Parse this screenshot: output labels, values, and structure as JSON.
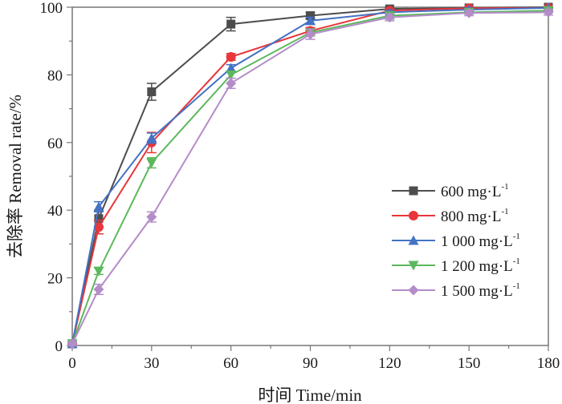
{
  "chart_data": {
    "type": "line",
    "title": "",
    "xlabel": "时间 Time/min",
    "ylabel": "去除率 Removal rate/%",
    "xlim": [
      0,
      180
    ],
    "ylim": [
      0,
      100
    ],
    "x_ticks": [
      0,
      30,
      60,
      90,
      120,
      150,
      180
    ],
    "x_minor_step": 15,
    "y_ticks": [
      0,
      20,
      40,
      60,
      80,
      100
    ],
    "y_minor_step": 10,
    "grid": false,
    "legend_position": "center-right",
    "x": [
      0,
      10,
      30,
      60,
      90,
      120,
      150,
      180
    ],
    "series": [
      {
        "name": "600 mg·L",
        "name_sup": "-1",
        "color": "#4d4d4d",
        "marker": "square",
        "values": [
          0.5,
          37.5,
          75,
          95,
          97.5,
          99.5,
          99.8,
          100
        ],
        "errors": [
          0.5,
          2.5,
          2.5,
          2,
          1,
          0.5,
          0.3,
          0.2
        ]
      },
      {
        "name": "800 mg·L",
        "name_sup": "-1",
        "color": "#e8363a",
        "marker": "circle",
        "values": [
          0.5,
          35,
          60,
          85.3,
          93,
          99,
          99.7,
          99.8
        ],
        "errors": [
          0.5,
          2,
          3,
          1,
          1,
          0.5,
          0.3,
          0.2
        ]
      },
      {
        "name": "1 000 mg·L",
        "name_sup": "-1",
        "color": "#4472c4",
        "marker": "triangle-up",
        "values": [
          0.5,
          41,
          61.3,
          82,
          96,
          98.5,
          99.3,
          99.8
        ],
        "errors": [
          0.5,
          1.5,
          1.5,
          1,
          1,
          0.5,
          0.5,
          0.3
        ]
      },
      {
        "name": "1 200 mg·L",
        "name_sup": "-1",
        "color": "#5cb85c",
        "marker": "triangle-down",
        "values": [
          0.5,
          22,
          54,
          80,
          92.5,
          97.5,
          98.5,
          99
        ],
        "errors": [
          0.5,
          1,
          1.5,
          1,
          1,
          1,
          0.5,
          0.5
        ]
      },
      {
        "name": "1 500 mg·L",
        "name_sup": "-1",
        "color": "#b48cc8",
        "marker": "diamond",
        "values": [
          0.5,
          16.6,
          38,
          77.5,
          92,
          97,
          98.3,
          98.5
        ],
        "errors": [
          0.5,
          1.5,
          1.5,
          1.5,
          1.5,
          1,
          0.8,
          0.8
        ]
      }
    ]
  }
}
